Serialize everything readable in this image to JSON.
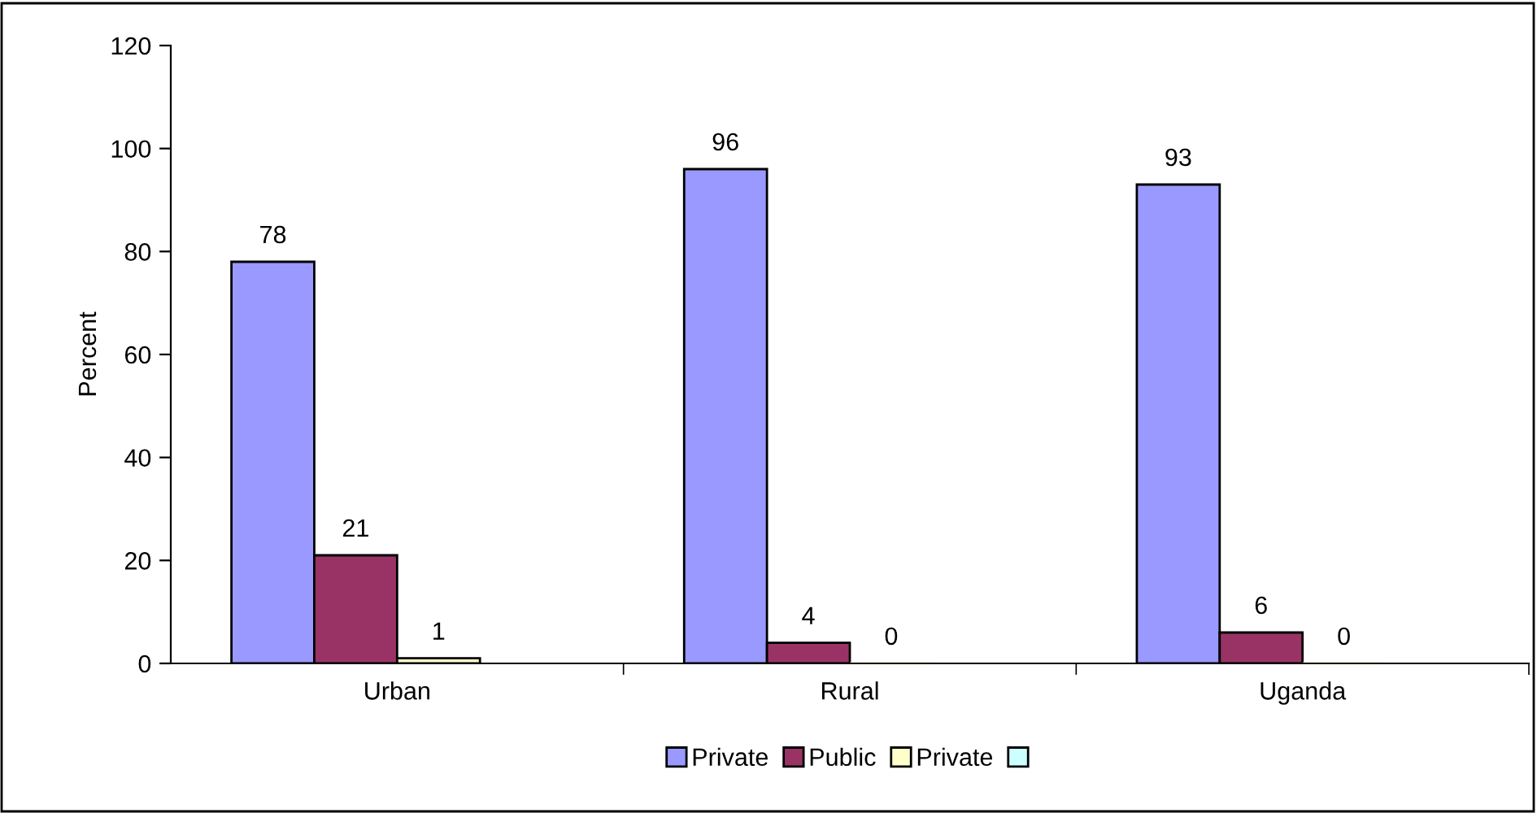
{
  "chart_data": {
    "type": "bar",
    "ylabel": "Percent",
    "categories": [
      "Urban",
      "Rural",
      "Uganda"
    ],
    "series": [
      {
        "name": "Private",
        "color": "#9999ff",
        "values": [
          78,
          96,
          93
        ]
      },
      {
        "name": "Public",
        "color": "#993366",
        "values": [
          21,
          4,
          6
        ]
      },
      {
        "name": "Private",
        "color": "#ffffcc",
        "values": [
          1,
          0,
          0
        ]
      },
      {
        "color": "#ccffff",
        "values": [
          null,
          null,
          null
        ]
      }
    ],
    "ylim": [
      0,
      120
    ],
    "yticks": [
      0,
      20,
      40,
      60,
      80,
      100,
      120
    ],
    "data_labels": true,
    "grid": false,
    "legend": "bottom"
  }
}
